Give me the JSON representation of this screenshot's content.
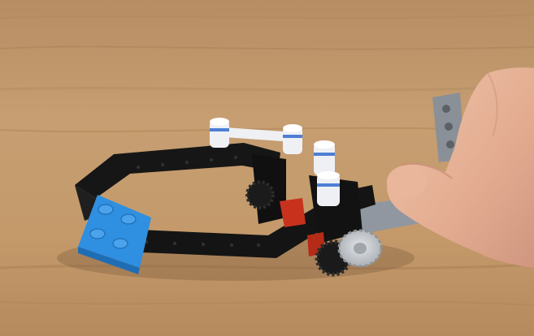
{
  "scene": {
    "background": "wooden-tabletop",
    "subject": "lego-technic-mechanism",
    "parts": [
      {
        "name": "black-octagonal-frame",
        "color": "#161616"
      },
      {
        "name": "blue-2x2-plate",
        "color": "#2f8fe0"
      },
      {
        "name": "white-axle-pins",
        "color": "#eef0f4"
      },
      {
        "name": "black-gear",
        "color": "#1b1b1b"
      },
      {
        "name": "light-gray-bevel-gear",
        "color": "#c9cdd2"
      },
      {
        "name": "red-connector",
        "color": "#c8321d"
      },
      {
        "name": "gray-liftarm",
        "color": "#8a9098"
      },
      {
        "name": "hand",
        "color": "#e7b49a"
      }
    ]
  }
}
